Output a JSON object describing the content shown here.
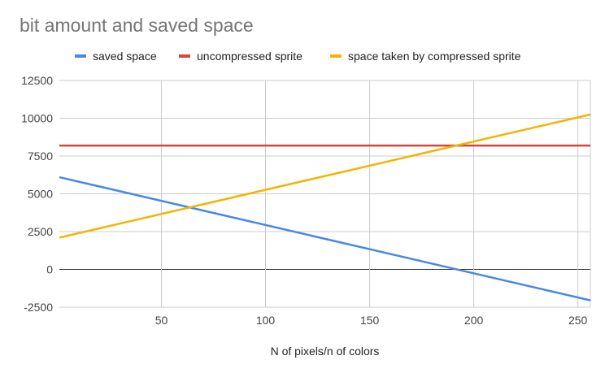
{
  "chart_data": {
    "type": "line",
    "title": "bit amount and saved space",
    "xlabel": "N of pixels/n of colors",
    "ylabel": "",
    "xlim": [
      1,
      256
    ],
    "ylim": [
      -2500,
      12500
    ],
    "x_ticks": [
      50,
      100,
      150,
      200,
      250
    ],
    "y_ticks": [
      -2500,
      0,
      2500,
      5000,
      7500,
      10000,
      12500
    ],
    "grid": true,
    "legend_position": "top",
    "series": [
      {
        "name": "saved space",
        "color": "#4a86e8",
        "x": [
          1,
          256
        ],
        "y": [
          6100,
          -2050
        ]
      },
      {
        "name": "uncompressed sprite",
        "color": "#db4437",
        "x": [
          1,
          256
        ],
        "y": [
          8192,
          8192
        ]
      },
      {
        "name": "space taken by compressed sprite",
        "color": "#f4b400",
        "x": [
          1,
          256
        ],
        "y": [
          2100,
          10250
        ]
      }
    ]
  }
}
